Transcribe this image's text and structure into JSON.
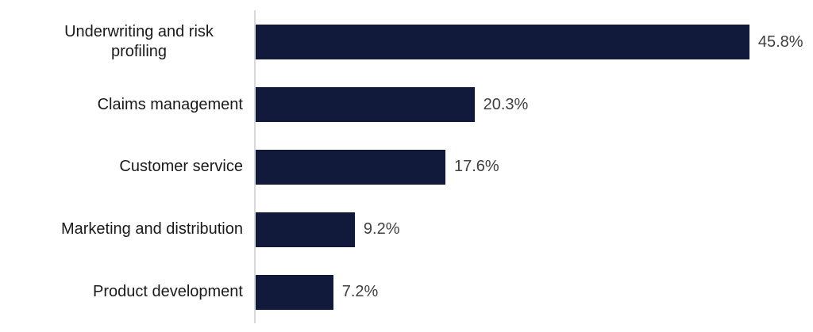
{
  "chart_data": {
    "type": "bar",
    "orientation": "horizontal",
    "title": "",
    "categories": [
      "Underwriting and risk profiling",
      "Claims management",
      "Customer service",
      "Marketing and distribution",
      "Product development"
    ],
    "values": [
      45.8,
      20.3,
      17.6,
      9.2,
      7.2
    ],
    "value_labels": [
      "45.8%",
      "20.3%",
      "17.6%",
      "9.2%",
      "7.2%"
    ],
    "xlim": [
      0,
      51.7
    ],
    "grid": false,
    "legend": false,
    "colors": {
      "bar_fill": "#111A3A",
      "axis_line": "#D9D9D9",
      "category_label": "#1A1A1A",
      "value_label": "#404040",
      "background": "#FFFFFF"
    }
  }
}
